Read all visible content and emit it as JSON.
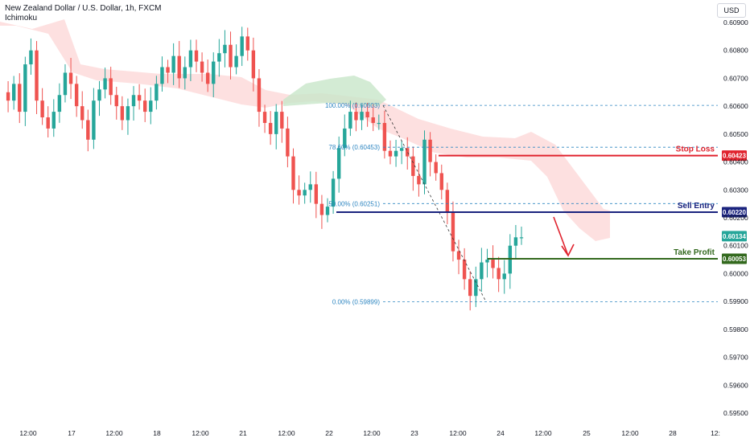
{
  "header": {
    "title": "New Zealand Dollar / U.S. Dollar, 1h, FXCM",
    "indicator": "Ichimoku",
    "currency": "USD"
  },
  "chart_data": {
    "type": "candlestick",
    "symbol": "NZDUSD",
    "timeframe": "1h",
    "ylim": [
      0.595,
      0.6095
    ],
    "y_ticks": [
      "0.60900",
      "0.60800",
      "0.60700",
      "0.60600",
      "0.60500",
      "0.60400",
      "0.60300",
      "0.60200",
      "0.60100",
      "0.60000",
      "0.59900",
      "0.59800",
      "0.59700",
      "0.59600",
      "0.59500"
    ],
    "x_ticks": [
      "12:00",
      "17",
      "12:00",
      "18",
      "12:00",
      "21",
      "12:00",
      "22",
      "12:00",
      "23",
      "12:00",
      "24",
      "12:00",
      "25",
      "12:00",
      "28",
      "12:"
    ],
    "fib": [
      {
        "label": "100.00% (0.60603)",
        "price": 0.60603
      },
      {
        "label": "78.60% (0.60453)",
        "price": 0.60453
      },
      {
        "label": "50.00% (0.60251)",
        "price": 0.60251
      },
      {
        "label": "0.00% (0.59899)",
        "price": 0.59899
      }
    ],
    "levels": [
      {
        "name": "Stop Loss",
        "price": 0.60423,
        "tag": "0.60423",
        "color": "#e0232e"
      },
      {
        "name": "Sell Entry",
        "price": 0.6022,
        "tag": "0.60220",
        "color": "#1a237e"
      },
      {
        "name": "Take Profit",
        "price": 0.60053,
        "tag": "0.60053",
        "color": "#33691e"
      }
    ],
    "current_price": {
      "price": 0.60134,
      "tag": "0.60134",
      "color": "#26a69a"
    },
    "colors": {
      "up": "#26a69a",
      "down": "#ef5350",
      "cloud_bear": "#fcd5d5",
      "cloud_bull": "#c8e6c9",
      "fib": "#2e86c1",
      "arrow": "#e0232e"
    },
    "price_path": [
      0.6065,
      0.6062,
      0.6068,
      0.6058,
      0.6075,
      0.608,
      0.6062,
      0.6056,
      0.6052,
      0.6058,
      0.6064,
      0.6072,
      0.6068,
      0.606,
      0.6055,
      0.6048,
      0.6062,
      0.6066,
      0.607,
      0.6064,
      0.606,
      0.6055,
      0.606,
      0.6064,
      0.6062,
      0.6058,
      0.6062,
      0.6068,
      0.6074,
      0.6072,
      0.6078,
      0.607,
      0.6074,
      0.608,
      0.6076,
      0.6072,
      0.6068,
      0.6076,
      0.6079,
      0.6082,
      0.6074,
      0.6078,
      0.6085,
      0.608,
      0.607,
      0.6058,
      0.6054,
      0.605,
      0.6058,
      0.6052,
      0.6042,
      0.603,
      0.6028,
      0.603,
      0.6032,
      0.6025,
      0.6021,
      0.6024,
      0.6034,
      0.6045,
      0.6052,
      0.6058,
      0.6055,
      0.6058,
      0.6056,
      0.6054,
      0.6054,
      0.6044,
      0.6042,
      0.6044,
      0.6045,
      0.6042,
      0.6035,
      0.6032,
      0.6048,
      0.604,
      0.6036,
      0.603,
      0.6022,
      0.6008,
      0.6005,
      0.5998,
      0.5992,
      0.5998,
      0.6004,
      0.6005,
      0.6002,
      0.5998,
      0.6,
      0.601,
      0.6013,
      0.6013
    ]
  }
}
